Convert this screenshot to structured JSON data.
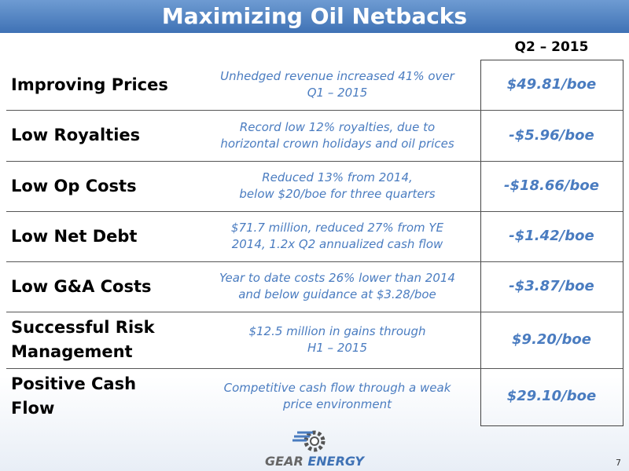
{
  "header": {
    "title": "Maximizing Oil Netbacks",
    "column": "Q2 – 2015"
  },
  "rows": [
    {
      "label": [
        "Improving Prices"
      ],
      "description": [
        "Unhedged revenue increased 41% over",
        "Q1 – 2015"
      ],
      "value": "$49.81/boe"
    },
    {
      "label": [
        "Low Royalties"
      ],
      "description": [
        "Record low 12% royalties, due to",
        "horizontal crown holidays and oil prices"
      ],
      "value": "-$5.96/boe"
    },
    {
      "label": [
        "Low Op Costs"
      ],
      "description": [
        "Reduced 13% from 2014,",
        "below $20/boe for three quarters"
      ],
      "value": "-$18.66/boe"
    },
    {
      "label": [
        "Low Net Debt"
      ],
      "description": [
        "$71.7 million, reduced 27% from YE",
        "2014, 1.2x Q2 annualized cash flow"
      ],
      "value": "-$1.42/boe"
    },
    {
      "label": [
        "Low G&A Costs"
      ],
      "description": [
        "Year to date costs 26% lower than 2014",
        "and below guidance at $3.28/boe"
      ],
      "value": "-$3.87/boe"
    },
    {
      "label": [
        "Successful Risk",
        "Management"
      ],
      "description": [
        "$12.5 million in gains through",
        "H1 – 2015"
      ],
      "value": "$9.20/boe"
    },
    {
      "label": [
        "Positive Cash",
        "Flow"
      ],
      "description": [
        "Competitive cash flow through a weak",
        "price environment"
      ],
      "value": "$29.10/boe"
    }
  ],
  "footer": {
    "logo": [
      "GEAR",
      "ENERGY"
    ],
    "page": "7"
  }
}
